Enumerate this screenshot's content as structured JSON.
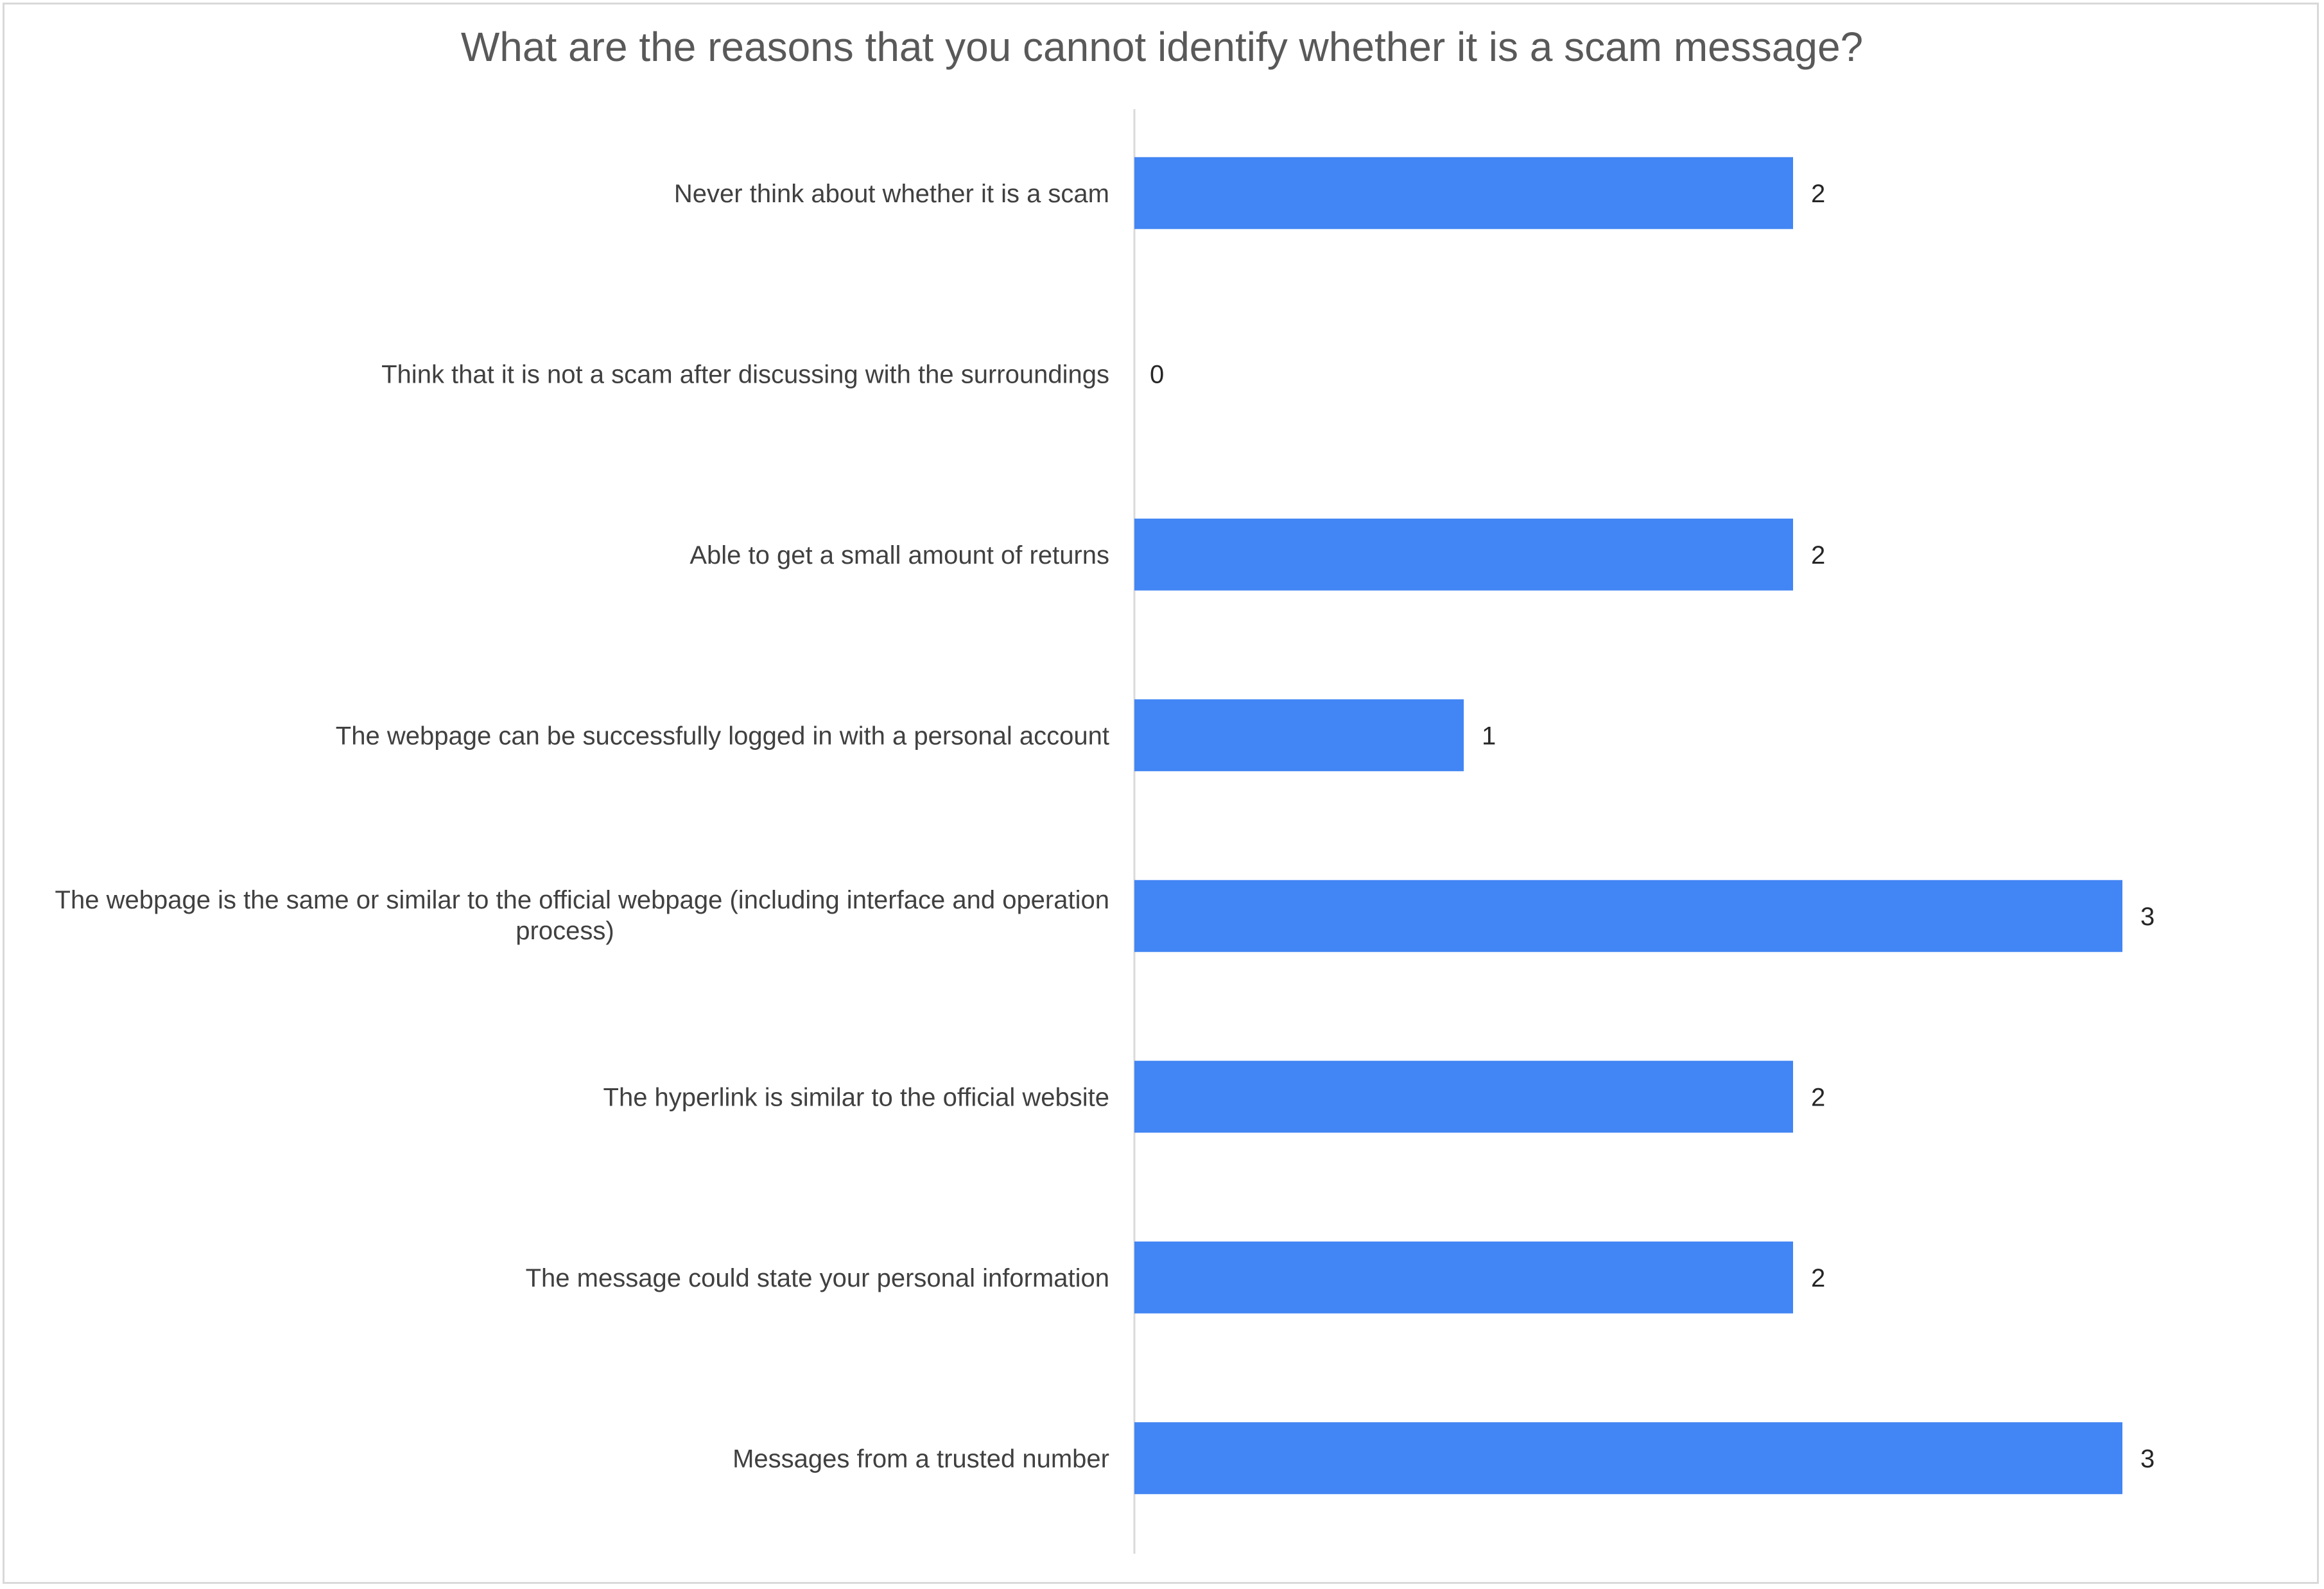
{
  "chart_data": {
    "type": "bar",
    "orientation": "horizontal",
    "title": "What are the reasons that you cannot identify whether it is a scam message?",
    "categories": [
      "Never think about whether it is a scam",
      "Think that it is not a scam after discussing with the surroundings",
      "Able to get a small amount of returns",
      "The webpage can be successfully logged in with a personal account",
      "The webpage is the same or similar to the official webpage (including interface and operation process)",
      "The hyperlink is similar to the official website",
      "The message could state your personal information",
      "Messages from a trusted number"
    ],
    "category_lines": [
      [
        "Never think about whether it is a scam"
      ],
      [
        "Think that it is not a scam after discussing with the surroundings"
      ],
      [
        "Able to get a small amount of returns"
      ],
      [
        "The webpage can be successfully logged in with a personal account"
      ],
      [
        "The webpage is the same or similar to the official webpage (including interface and operation",
        "process)"
      ],
      [
        "The hyperlink is similar to the official website"
      ],
      [
        "The message could state your personal information"
      ],
      [
        "Messages from a trusted number"
      ]
    ],
    "values": [
      2,
      0,
      2,
      1,
      3,
      2,
      2,
      3
    ],
    "xlim": [
      0,
      3
    ],
    "grid": false,
    "legend": "none",
    "bar_color": "#4285f4",
    "axis_color": "#d9d9d9"
  }
}
